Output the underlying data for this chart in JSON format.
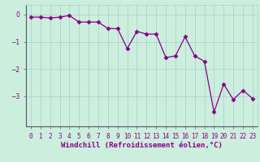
{
  "x": [
    0,
    1,
    2,
    3,
    4,
    5,
    6,
    7,
    8,
    9,
    10,
    11,
    12,
    13,
    14,
    15,
    16,
    17,
    18,
    19,
    20,
    21,
    22,
    23
  ],
  "y": [
    -0.1,
    -0.1,
    -0.13,
    -0.1,
    -0.04,
    -0.28,
    -0.28,
    -0.28,
    -0.52,
    -0.52,
    -1.25,
    -0.62,
    -0.72,
    -0.72,
    -1.58,
    -1.52,
    -0.82,
    -1.52,
    -1.72,
    -3.58,
    -2.55,
    -3.12,
    -2.78,
    -3.08
  ],
  "line_color": "#880088",
  "marker": "D",
  "markersize": 2.5,
  "linewidth": 0.9,
  "bg_color": "#cceedd",
  "grid_color": "#aacccc",
  "xlabel": "Windchill (Refroidissement éolien,°C)",
  "xlabel_fontsize": 6.5,
  "yticks": [
    0,
    -1,
    -2,
    -3
  ],
  "ylim": [
    -4.1,
    0.35
  ],
  "xlim": [
    -0.5,
    23.5
  ],
  "xtick_labels": [
    "0",
    "1",
    "2",
    "3",
    "4",
    "5",
    "6",
    "7",
    "8",
    "9",
    "10",
    "11",
    "12",
    "13",
    "14",
    "15",
    "16",
    "17",
    "18",
    "19",
    "20",
    "21",
    "22",
    "23"
  ],
  "tick_fontsize": 5.5,
  "label_color": "#880088",
  "spine_color": "#888888",
  "axis_border_color": "#555566"
}
